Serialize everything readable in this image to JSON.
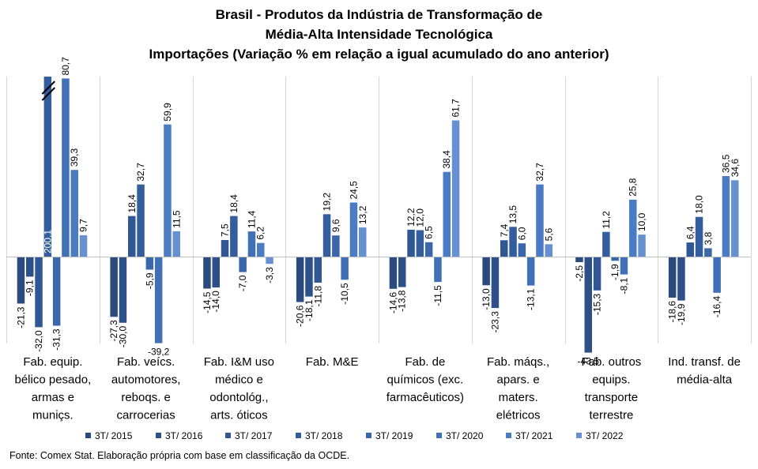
{
  "chart_data": {
    "type": "bar",
    "title": [
      "Brasil - Produtos da Indústria de Transformação de",
      "Média-Alta Intensidade Tecnológica",
      "Importações (Variação % em relação a igual acumulado do ano anterior)"
    ],
    "categories": [
      [
        "Fab. equip.",
        "bélico pesado,",
        "armas e",
        "muniçs."
      ],
      [
        "Fab. veícs.",
        "automotores,",
        "reboqs. e",
        "carrocerias"
      ],
      [
        "Fab. I&M uso",
        "médico e",
        "odontológ.,",
        "arts. óticos"
      ],
      [
        "Fab. M&E"
      ],
      [
        "Fab. de",
        "químicos (exc.",
        "farmacêuticos)"
      ],
      [
        "Fab. máqs.,",
        "apars. e",
        "maters.",
        "elétricos"
      ],
      [
        "Fab. outros",
        "equips.",
        "transporte",
        "terrestre"
      ],
      [
        "Ind. transf. de",
        "média-alta"
      ]
    ],
    "series": [
      {
        "name": "3T/ 2015",
        "color": "#2b4a7e",
        "values": [
          -21.3,
          -27.3,
          -14.5,
          -20.6,
          -14.6,
          -13.0,
          -2.5,
          -18.6
        ]
      },
      {
        "name": "3T/ 2016",
        "color": "#2e5089",
        "values": [
          -9.1,
          -30.0,
          -14.0,
          -18.1,
          -13.8,
          -23.3,
          -43.5,
          -19.9
        ]
      },
      {
        "name": "3T/ 2017",
        "color": "#305693",
        "values": [
          -32.0,
          18.4,
          7.5,
          -11.8,
          12.2,
          7.4,
          -15.3,
          6.4
        ]
      },
      {
        "name": "3T/ 2018",
        "color": "#345d9e",
        "values": [
          200.1,
          32.7,
          18.4,
          19.2,
          12.0,
          13.5,
          11.2,
          18.0
        ]
      },
      {
        "name": "3T/ 2019",
        "color": "#3a66aa",
        "values": [
          -31.3,
          -5.9,
          -7.0,
          9.6,
          6.5,
          6.0,
          -1.9,
          3.8
        ]
      },
      {
        "name": "3T/ 2020",
        "color": "#4070b6",
        "values": [
          80.7,
          -39.2,
          11.4,
          -10.5,
          -11.5,
          -13.1,
          -8.1,
          -16.4
        ]
      },
      {
        "name": "3T/ 2021",
        "color": "#4b7bc2",
        "values": [
          39.3,
          59.9,
          6.2,
          24.5,
          38.4,
          32.7,
          25.8,
          36.5
        ]
      },
      {
        "name": "3T/ 2022",
        "color": "#6690d0",
        "values": [
          9.7,
          11.5,
          -3.3,
          13.2,
          61.7,
          5.6,
          10.0,
          34.6
        ]
      }
    ],
    "value_labels": [
      [
        "-21,3",
        "-9,1",
        "-32,0",
        "200,1",
        "-31,3",
        "80,7",
        "39,3",
        "9,7"
      ],
      [
        "-27,3",
        "-30,0",
        "18,4",
        "32,7",
        "-5,9",
        "-39,2",
        "59,9",
        "11,5"
      ],
      [
        "-14,5",
        "-14,0",
        "7,5",
        "18,4",
        "-7,0",
        "11,4",
        "6,2",
        "-3,3"
      ],
      [
        "-20,6",
        "-18,1",
        "-11,8",
        "19,2",
        "9,6",
        "-10,5",
        "24,5",
        "13,2"
      ],
      [
        "-14,6",
        "-13,8",
        "12,2",
        "12,0",
        "6,5",
        "-11,5",
        "38,4",
        "61,7"
      ],
      [
        "-13,0",
        "-23,3",
        "7,4",
        "13,5",
        "6,0",
        "-13,1",
        "32,7",
        "5,6"
      ],
      [
        "-2,5",
        "-43,5",
        "-15,3",
        "11,2",
        "-1,9",
        "-8,1",
        "25,8",
        "10,0"
      ],
      [
        "-18,6",
        "-19,9",
        "6,4",
        "18,0",
        "3,8",
        "-16,4",
        "36,5",
        "34,6"
      ]
    ],
    "axis_break": {
      "category_index": 0,
      "series_index": 3,
      "value": 200.1
    },
    "ylim": [
      -50,
      90
    ],
    "y_axis_visible": false,
    "grid": false,
    "category_separators": true,
    "legend_position": "bottom"
  },
  "source": "Fonte: Comex Stat. Elaboração própria com base em classificação da OCDE."
}
